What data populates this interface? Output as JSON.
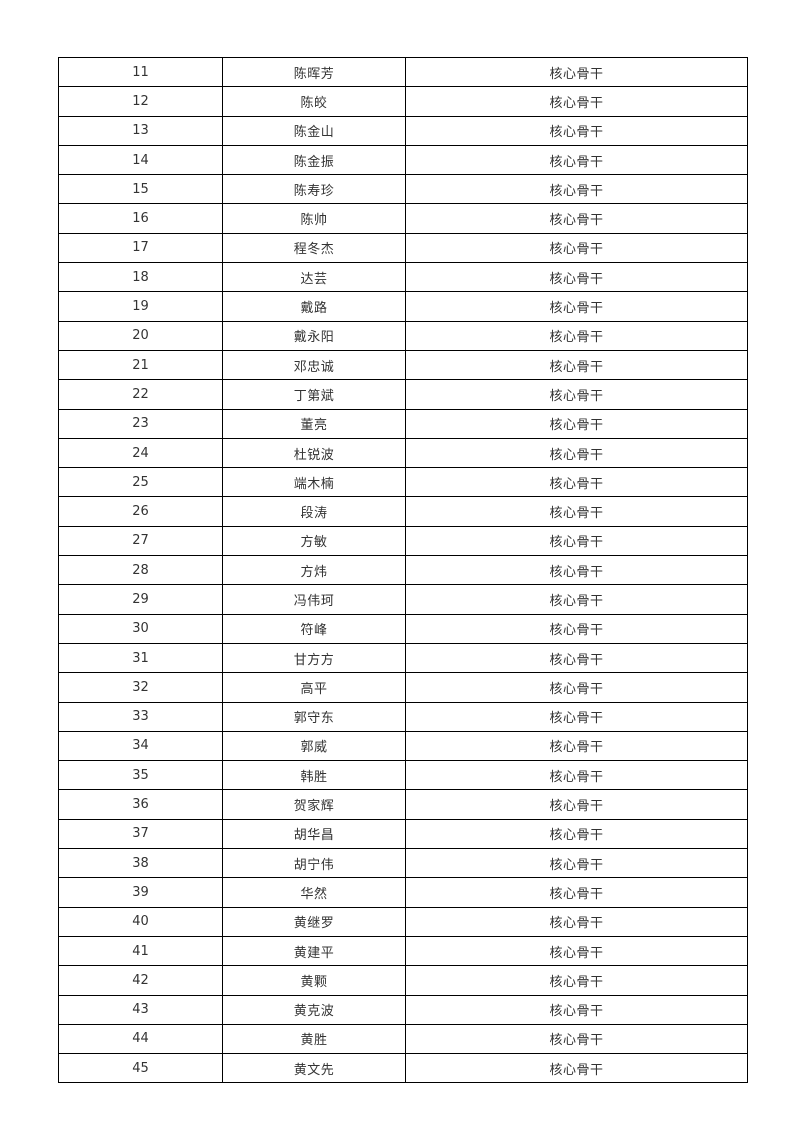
{
  "page": {
    "background_color": "#ffffff",
    "border_color": "#000000",
    "text_color": "#333333"
  },
  "table": {
    "columns": [
      "number",
      "name",
      "role"
    ],
    "rows": [
      {
        "no": "11",
        "name": "陈晖芳",
        "role": "核心骨干"
      },
      {
        "no": "12",
        "name": "陈皎",
        "role": "核心骨干"
      },
      {
        "no": "13",
        "name": "陈金山",
        "role": "核心骨干"
      },
      {
        "no": "14",
        "name": "陈金振",
        "role": "核心骨干"
      },
      {
        "no": "15",
        "name": "陈寿珍",
        "role": "核心骨干"
      },
      {
        "no": "16",
        "name": "陈帅",
        "role": "核心骨干"
      },
      {
        "no": "17",
        "name": "程冬杰",
        "role": "核心骨干"
      },
      {
        "no": "18",
        "name": "达芸",
        "role": "核心骨干"
      },
      {
        "no": "19",
        "name": "戴路",
        "role": "核心骨干"
      },
      {
        "no": "20",
        "name": "戴永阳",
        "role": "核心骨干"
      },
      {
        "no": "21",
        "name": "邓忠诚",
        "role": "核心骨干"
      },
      {
        "no": "22",
        "name": "丁第斌",
        "role": "核心骨干"
      },
      {
        "no": "23",
        "name": "董亮",
        "role": "核心骨干"
      },
      {
        "no": "24",
        "name": "杜锐波",
        "role": "核心骨干"
      },
      {
        "no": "25",
        "name": "端木楠",
        "role": "核心骨干"
      },
      {
        "no": "26",
        "name": "段涛",
        "role": "核心骨干"
      },
      {
        "no": "27",
        "name": "方敏",
        "role": "核心骨干"
      },
      {
        "no": "28",
        "name": "方炜",
        "role": "核心骨干"
      },
      {
        "no": "29",
        "name": "冯伟珂",
        "role": "核心骨干"
      },
      {
        "no": "30",
        "name": "符峰",
        "role": "核心骨干"
      },
      {
        "no": "31",
        "name": "甘方方",
        "role": "核心骨干"
      },
      {
        "no": "32",
        "name": "高平",
        "role": "核心骨干"
      },
      {
        "no": "33",
        "name": "郭守东",
        "role": "核心骨干"
      },
      {
        "no": "34",
        "name": "郭威",
        "role": "核心骨干"
      },
      {
        "no": "35",
        "name": "韩胜",
        "role": "核心骨干"
      },
      {
        "no": "36",
        "name": "贺家辉",
        "role": "核心骨干"
      },
      {
        "no": "37",
        "name": "胡华昌",
        "role": "核心骨干"
      },
      {
        "no": "38",
        "name": "胡宁伟",
        "role": "核心骨干"
      },
      {
        "no": "39",
        "name": "华然",
        "role": "核心骨干"
      },
      {
        "no": "40",
        "name": "黄继罗",
        "role": "核心骨干"
      },
      {
        "no": "41",
        "name": "黄建平",
        "role": "核心骨干"
      },
      {
        "no": "42",
        "name": "黄颗",
        "role": "核心骨干"
      },
      {
        "no": "43",
        "name": "黄克波",
        "role": "核心骨干"
      },
      {
        "no": "44",
        "name": "黄胜",
        "role": "核心骨干"
      },
      {
        "no": "45",
        "name": "黄文先",
        "role": "核心骨干"
      }
    ]
  }
}
